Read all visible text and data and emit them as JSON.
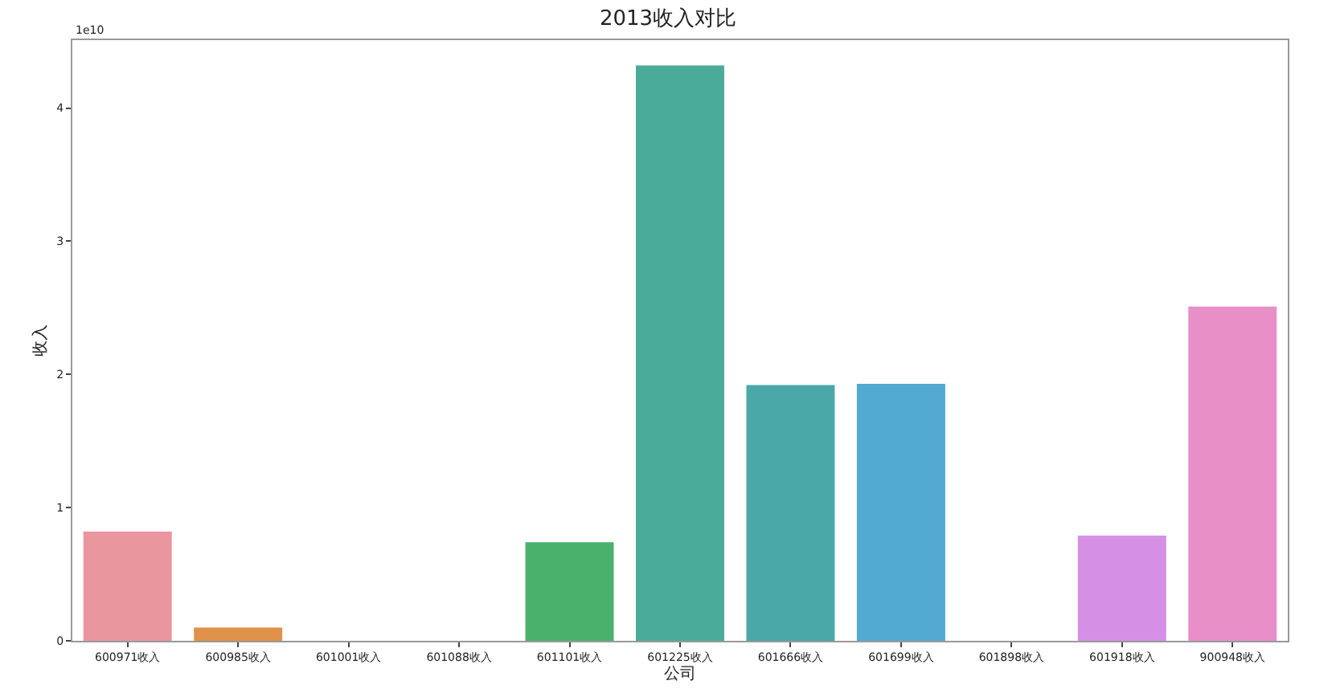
{
  "chart_data": {
    "type": "bar",
    "title": "2013收入对比",
    "xlabel": "公司",
    "ylabel": "收入",
    "categories": [
      "600971收入",
      "600985收入",
      "601001收入",
      "601088收入",
      "601101收入",
      "601225收入",
      "601666收入",
      "601699收入",
      "601898收入",
      "601918收入",
      "900948收入"
    ],
    "values": [
      0.82,
      0.1,
      0,
      0,
      0.74,
      4.32,
      1.92,
      1.93,
      0,
      0.79,
      2.51
    ],
    "colors": [
      "#e9969f",
      "#e0914a",
      "#c2a24e",
      "#9fae4c",
      "#4ab16a",
      "#4aab98",
      "#4aa8a8",
      "#52aad3",
      "#9aa4e6",
      "#d590e6",
      "#e88fc8"
    ],
    "ylim": [
      0,
      4.51
    ],
    "yticks": [
      0,
      1,
      2,
      3,
      4
    ],
    "annotations": [
      "1e10"
    ],
    "legend": false
  }
}
